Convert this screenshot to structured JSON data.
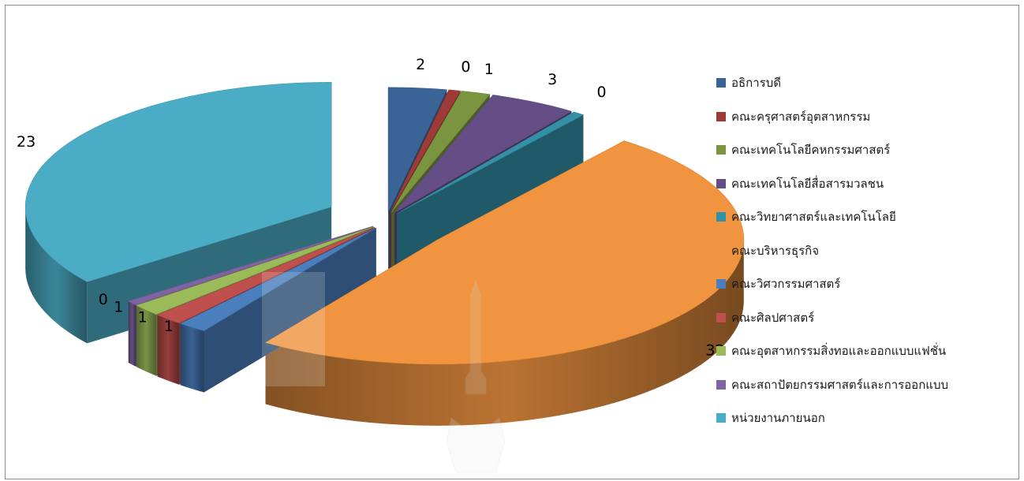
{
  "chart_data": {
    "type": "pie",
    "title": "",
    "legend_position": "right",
    "data_labels": true,
    "series": [
      {
        "name": "อธิการบดี",
        "value": 2,
        "label": "2",
        "color": "#3b6496"
      },
      {
        "name": "คณะครุศาสตร์อุตสาหกรรม",
        "value": 0,
        "label": "0",
        "color": "#9e3b38"
      },
      {
        "name": "คณะเทคโนโลยีคหกรรมศาสตร์",
        "value": 1,
        "label": "1",
        "color": "#7a9440"
      },
      {
        "name": "คณะเทคโนโลยีสื่อสารมวลชน",
        "value": 3,
        "label": "3",
        "color": "#654e85"
      },
      {
        "name": "คณะวิทยาศาสตร์และเทคโนโลยี",
        "value": 0,
        "label": "0",
        "color": "#3490a6"
      },
      {
        "name": "คณะบริหารธุรกิจ",
        "value": 32,
        "label": "32",
        "color": "#f09440"
      },
      {
        "name": "คณะวิศวกรรมศาสตร์",
        "value": 1,
        "label": "1",
        "color": "#4a7ebd"
      },
      {
        "name": "คณะศิลปศาสตร์",
        "value": 1,
        "label": "1",
        "color": "#c0504d"
      },
      {
        "name": "คณะอุตสาหกรรมสิ่งทอและออกแบบแฟชั่น",
        "value": 1,
        "label": "1",
        "color": "#9bbb59"
      },
      {
        "name": "คณะสถาปัตยกรรมศาสตร์และการออกแบบ",
        "value": 0,
        "label": "0",
        "color": "#8064a2"
      },
      {
        "name": "หน่วยงานภายนอก",
        "value": 23,
        "label": "23",
        "color": "#4bacc6"
      }
    ]
  }
}
